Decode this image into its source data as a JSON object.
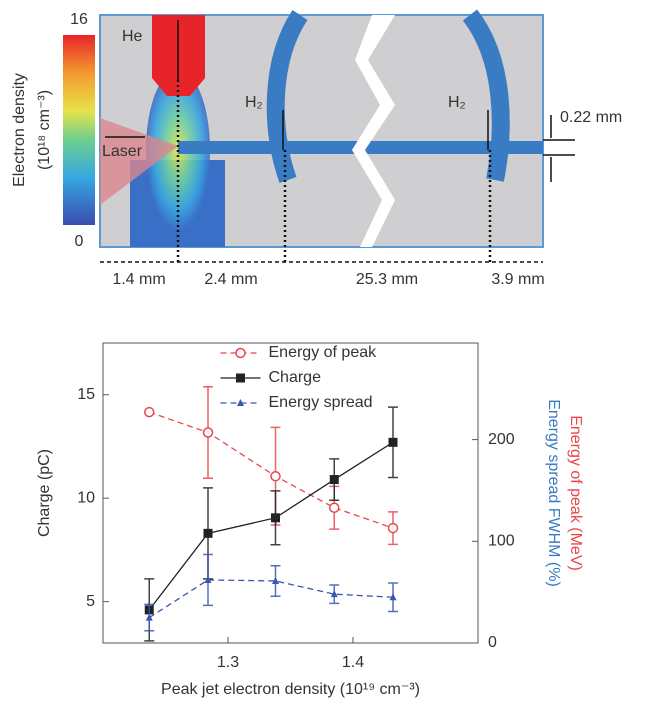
{
  "diagram": {
    "colorbar": {
      "label": "Electron density",
      "unit": "(10¹⁸ cm⁻³)",
      "max": 16,
      "min": 0
    },
    "labels": {
      "gas_1": "He",
      "gas_2": "H₂",
      "gas_3": "H₂",
      "beam": "Laser",
      "gap": "0.22 mm"
    },
    "dimensions": [
      "1.4 mm",
      "2.4 mm",
      "25.3 mm",
      "3.9 mm"
    ]
  },
  "chart_data": {
    "type": "line",
    "x_label": "Peak jet electron density (10¹⁹ cm⁻³)",
    "y_label": "Charge (pC)",
    "y2_label": [
      "Energy of peak (MeV)",
      "Energy spread FWHM (%)"
    ],
    "y2_label_colors": [
      "#e8474c",
      "#3a7cc4"
    ],
    "x": [
      1.237,
      1.284,
      1.338,
      1.385,
      1.432
    ],
    "xlim": [
      1.2,
      1.5
    ],
    "xticks": [
      1.3,
      1.4
    ],
    "ylim": [
      3,
      17.5
    ],
    "yticks": [
      5,
      10,
      15
    ],
    "y2lim": [
      0,
      295
    ],
    "y2ticks": [
      0,
      100,
      200
    ],
    "legend": "upper center",
    "series": [
      {
        "name": "Energy of peak",
        "color": "#e8474c",
        "axis": "y2",
        "marker": "circle-open",
        "linestyle": "dashed",
        "values": [
          227,
          207,
          164,
          133,
          113
        ],
        "errors": [
          null,
          45,
          48,
          21,
          16
        ]
      },
      {
        "name": "Charge",
        "color": "#222222",
        "marker": "square",
        "linestyle": "solid",
        "values": [
          4.6,
          8.3,
          9.05,
          10.9,
          12.7
        ],
        "errors": [
          1.5,
          2.2,
          1.3,
          1.0,
          1.7
        ]
      },
      {
        "name": "Energy spread",
        "color": "#3a55b4",
        "axis": "y2",
        "marker": "triangle",
        "linestyle": "dashed",
        "values": [
          25,
          62,
          61,
          48,
          45
        ],
        "errors": [
          13,
          25,
          15,
          9,
          14
        ]
      }
    ]
  }
}
